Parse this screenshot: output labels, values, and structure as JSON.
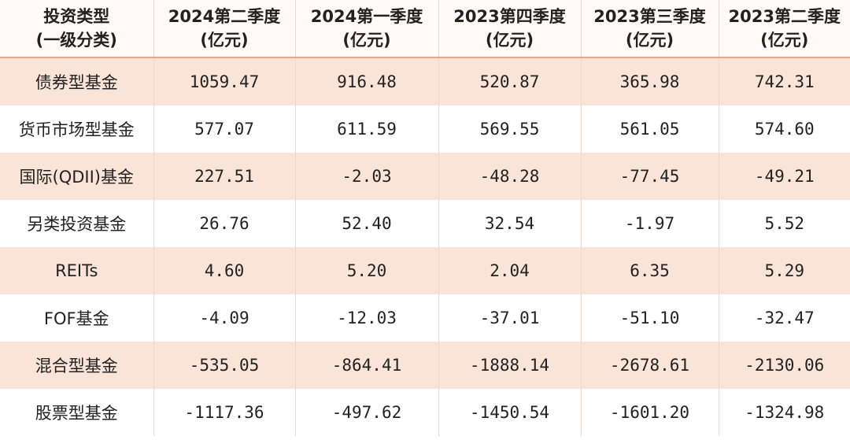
{
  "table": {
    "header": [
      [
        "投资类型",
        "(一级分类)"
      ],
      [
        "2024第二季度",
        "(亿元)"
      ],
      [
        "2024第一季度",
        "(亿元)"
      ],
      [
        "2023第四季度",
        "(亿元)"
      ],
      [
        "2023第三季度",
        "(亿元)"
      ],
      [
        "2023第二季度",
        "(亿元)"
      ]
    ],
    "rows": [
      [
        "债券型基金",
        "1059.47",
        "916.48",
        "520.87",
        "365.98",
        "742.31"
      ],
      [
        "货币市场型基金",
        "577.07",
        "611.59",
        "569.55",
        "561.05",
        "574.60"
      ],
      [
        "国际(QDII)基金",
        "227.51",
        "-2.03",
        "-48.28",
        "-77.45",
        "-49.21"
      ],
      [
        "另类投资基金",
        "26.76",
        "52.40",
        "32.54",
        "-1.97",
        "5.52"
      ],
      [
        "REITs",
        "4.60",
        "5.20",
        "2.04",
        "6.35",
        "5.29"
      ],
      [
        "FOF基金",
        "-4.09",
        "-12.03",
        "-37.01",
        "-51.10",
        "-32.47"
      ],
      [
        "混合型基金",
        "-535.05",
        "-864.41",
        "-1888.14",
        "-2678.61",
        "-2130.06"
      ],
      [
        "股票型基金",
        "-1117.36",
        "-497.62",
        "-1450.54",
        "-1601.20",
        "-1324.98"
      ]
    ]
  }
}
